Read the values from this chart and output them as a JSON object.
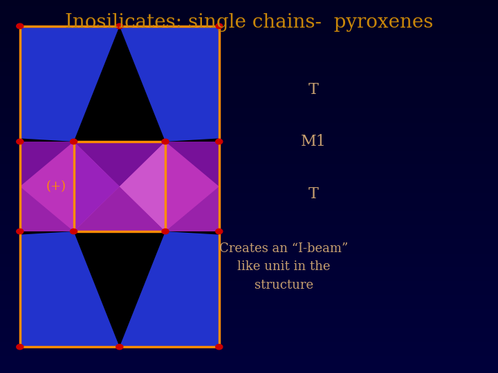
{
  "title": "Inosilicates: single chains-  pyroxenes",
  "title_color": "#C8860A",
  "title_fontsize": 20,
  "bg_color": "#00003A",
  "text_color": "#C8A070",
  "orange_line": "#FF8C00",
  "red_dot": "#CC0000",
  "blue_fill": "#2233CC",
  "purple_fill": "#BB33BB",
  "purple_dark": "#771199",
  "purple_mid": "#9922AA",
  "inner_purple": "#CC44CC",
  "label_T": "T",
  "label_M1": "M1",
  "label_plus": "(+)",
  "desc": "Creates an “I-beam”\nlike unit in the\nstructure",
  "il": 0.27,
  "ir": 0.73,
  "ib": 0.36,
  "it": 0.64,
  "ox1": 0.04,
  "ox2": 0.44,
  "oy1": 0.07,
  "oy2": 0.93
}
